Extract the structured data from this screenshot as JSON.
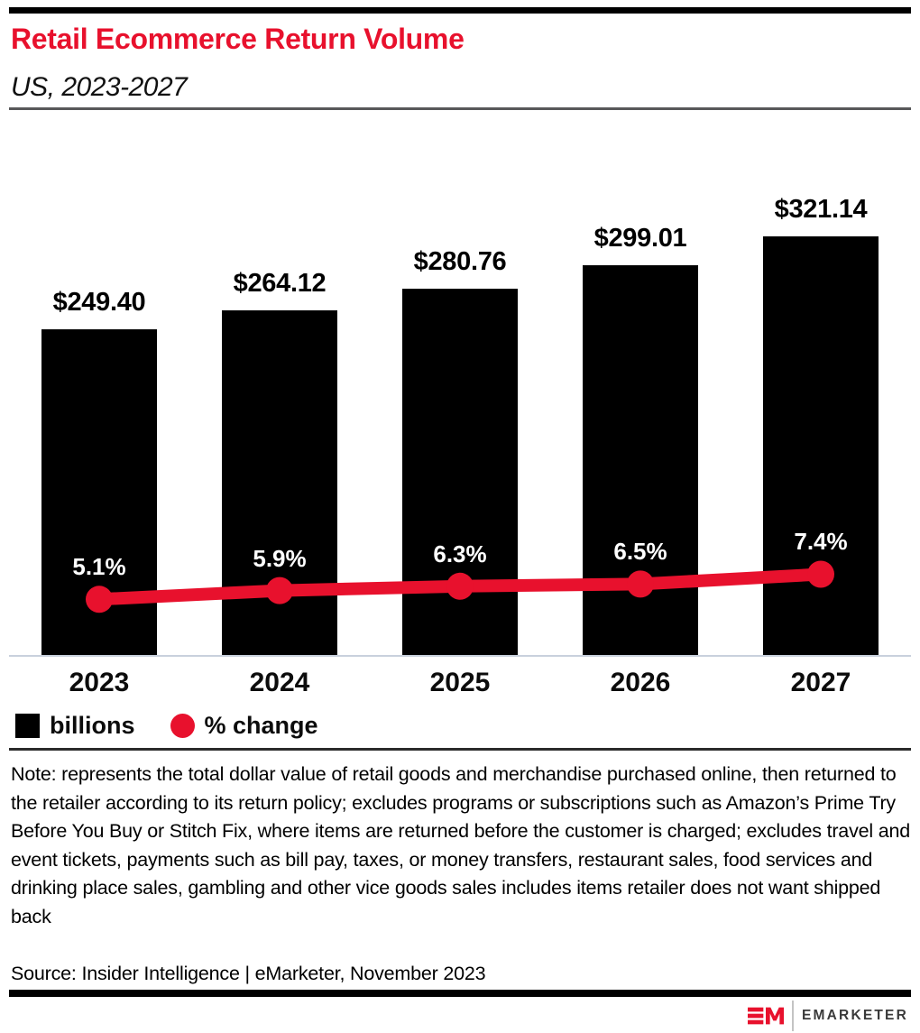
{
  "header": {
    "title": "Retail Ecommerce Return Volume",
    "subtitle": "US, 2023-2027"
  },
  "chart_data": {
    "type": "bar",
    "title": "Retail Ecommerce Return Volume",
    "subtitle": "US, 2023-2027",
    "categories": [
      "2023",
      "2024",
      "2025",
      "2026",
      "2027"
    ],
    "series": [
      {
        "name": "billions",
        "type": "bar",
        "color": "#000000",
        "values": [
          249.4,
          264.12,
          280.76,
          299.01,
          321.14
        ],
        "labels": [
          "$249.40",
          "$264.12",
          "$280.76",
          "$299.01",
          "$321.14"
        ]
      },
      {
        "name": "% change",
        "type": "line",
        "color": "#e8112d",
        "values": [
          5.1,
          5.9,
          6.3,
          6.5,
          7.4
        ],
        "labels": [
          "5.1%",
          "5.9%",
          "6.3%",
          "6.5%",
          "7.4%"
        ]
      }
    ],
    "xlabel": "",
    "ylabel": "",
    "bar_ylim": [
      0,
      365
    ],
    "line_ylim": [
      0,
      43
    ],
    "grid": false,
    "value_axis_visible": false,
    "value_labels_shown": true,
    "legend_position": "bottom-left"
  },
  "legend": {
    "items": [
      {
        "label": "billions",
        "swatch": "square",
        "color": "#000000"
      },
      {
        "label": "% change",
        "swatch": "circle",
        "color": "#e8112d"
      }
    ]
  },
  "note": "Note: represents the total dollar value of retail goods and merchandise purchased online, then returned to the retailer according to its return policy; excludes programs or subscriptions such as Amazon’s Prime Try Before You Buy or Stitch Fix, where items are returned before the customer is charged; excludes travel and event tickets, payments such as bill pay, taxes, or money transfers, restaurant sales, food services and drinking place sales, gambling and other vice goods sales includes items retailer does not want shipped back",
  "source": "Source: Insider Intelligence | eMarketer, November 2023",
  "footer": {
    "logo_text": "EMARKETER"
  },
  "colors": {
    "accent": "#e8112d",
    "bar": "#000000",
    "axis_line": "#c9d1dd",
    "rule_gray": "#58585a",
    "rule_dark": "#2b2b2b"
  }
}
